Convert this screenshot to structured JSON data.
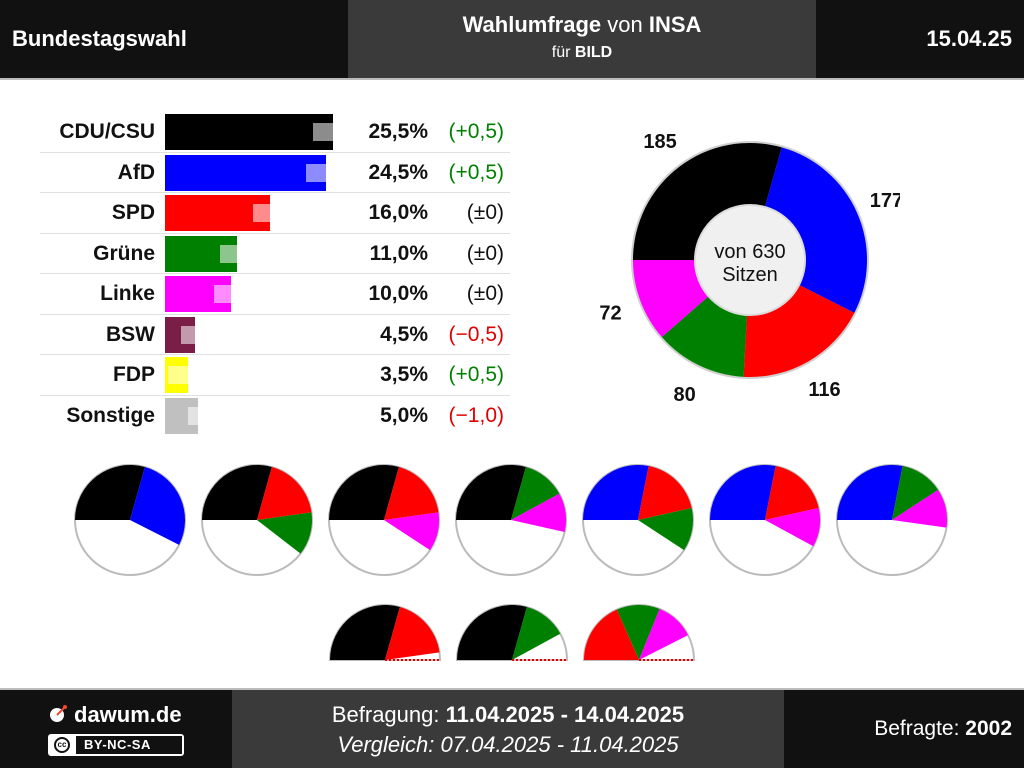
{
  "header": {
    "left": "Bundestagswahl",
    "title_bold1": "Wahlumfrage",
    "title_mid": " von ",
    "title_bold2": "INSA",
    "subtitle_pre": "für ",
    "subtitle_bold": "BILD",
    "date": "15.04.25"
  },
  "chart_data": [
    {
      "type": "bar",
      "orientation": "horizontal",
      "categories": [
        "CDU/CSU",
        "AfD",
        "SPD",
        "Grüne",
        "Linke",
        "BSW",
        "FDP",
        "Sonstige"
      ],
      "values": [
        25.5,
        24.5,
        16.0,
        11.0,
        10.0,
        4.5,
        3.5,
        5.0
      ],
      "previous_values": [
        25.0,
        24.0,
        16.0,
        11.0,
        10.0,
        5.0,
        3.0,
        6.0
      ],
      "value_labels": [
        "25,5%",
        "24,5%",
        "16,0%",
        "11,0%",
        "10,0%",
        "4,5%",
        "3,5%",
        "5,0%"
      ],
      "diff_labels": [
        "(+0,5)",
        "(+0,5)",
        "(±0)",
        "(±0)",
        "(±0)",
        "(−0,5)",
        "(+0,5)",
        "(−1,0)"
      ],
      "diff_colors": [
        "#008000",
        "#008000",
        "#111111",
        "#111111",
        "#111111",
        "#e00000",
        "#008000",
        "#e00000"
      ],
      "colors": [
        "#000000",
        "#0000ff",
        "#ff0000",
        "#008000",
        "#ff00ff",
        "#7a1e48",
        "#ffff00",
        "#c0c0c0"
      ],
      "xlim": [
        0,
        30
      ]
    },
    {
      "type": "pie",
      "variant": "donut",
      "center_label_1": "von 630",
      "center_label_2": "Sitzen",
      "slices": [
        {
          "value": 185,
          "label": "185",
          "color": "#000000"
        },
        {
          "value": 177,
          "label": "177",
          "color": "#0000ff"
        },
        {
          "value": 116,
          "label": "116",
          "color": "#ff0000"
        },
        {
          "value": 80,
          "label": "80",
          "color": "#008000"
        },
        {
          "value": 72,
          "label": "72",
          "color": "#ff00ff"
        }
      ]
    },
    {
      "type": "pie",
      "variant": "coalition-semicircles",
      "total": 630,
      "coalitions": [
        [
          {
            "value": 185,
            "color": "#000000"
          },
          {
            "value": 177,
            "color": "#0000ff"
          }
        ],
        [
          {
            "value": 185,
            "color": "#000000"
          },
          {
            "value": 116,
            "color": "#ff0000"
          },
          {
            "value": 80,
            "color": "#008000"
          }
        ],
        [
          {
            "value": 185,
            "color": "#000000"
          },
          {
            "value": 116,
            "color": "#ff0000"
          },
          {
            "value": 72,
            "color": "#ff00ff"
          }
        ],
        [
          {
            "value": 185,
            "color": "#000000"
          },
          {
            "value": 80,
            "color": "#008000"
          },
          {
            "value": 72,
            "color": "#ff00ff"
          }
        ],
        [
          {
            "value": 177,
            "color": "#0000ff"
          },
          {
            "value": 116,
            "color": "#ff0000"
          },
          {
            "value": 80,
            "color": "#008000"
          }
        ],
        [
          {
            "value": 177,
            "color": "#0000ff"
          },
          {
            "value": 116,
            "color": "#ff0000"
          },
          {
            "value": 72,
            "color": "#ff00ff"
          }
        ],
        [
          {
            "value": 177,
            "color": "#0000ff"
          },
          {
            "value": 80,
            "color": "#008000"
          },
          {
            "value": 72,
            "color": "#ff00ff"
          }
        ],
        [
          {
            "value": 185,
            "color": "#000000"
          },
          {
            "value": 116,
            "color": "#ff0000"
          }
        ],
        [
          {
            "value": 185,
            "color": "#000000"
          },
          {
            "value": 80,
            "color": "#008000"
          }
        ],
        [
          {
            "value": 116,
            "color": "#ff0000"
          },
          {
            "value": 80,
            "color": "#008000"
          },
          {
            "value": 72,
            "color": "#ff00ff"
          }
        ]
      ]
    }
  ],
  "footer": {
    "site": "dawum.de",
    "license": "BY-NC-SA",
    "license_icon": "cc-icon",
    "survey_pre": "Befragung: ",
    "survey_range": "11.04.2025 - 14.04.2025",
    "compare": "Vergleich: 07.04.2025 - 11.04.2025",
    "respondents_pre": "Befragte: ",
    "respondents": "2002"
  }
}
